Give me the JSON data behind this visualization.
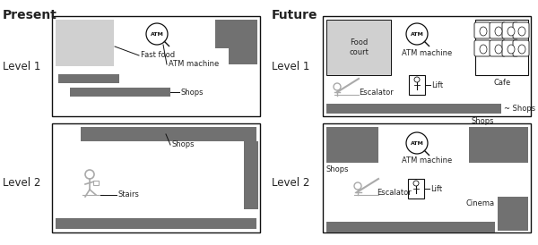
{
  "dark_gray": "#717171",
  "light_gray": "#d0d0d0",
  "mid_gray": "#aaaaaa",
  "white": "#ffffff",
  "black": "#111111",
  "text_color": "#222222",
  "title_fontsize": 10,
  "label_fontsize": 6.0,
  "heading_fontsize": 8.5,
  "present_heading": "Present",
  "future_heading": "Future",
  "level1_label": "Level 1",
  "level2_label": "Level 2"
}
